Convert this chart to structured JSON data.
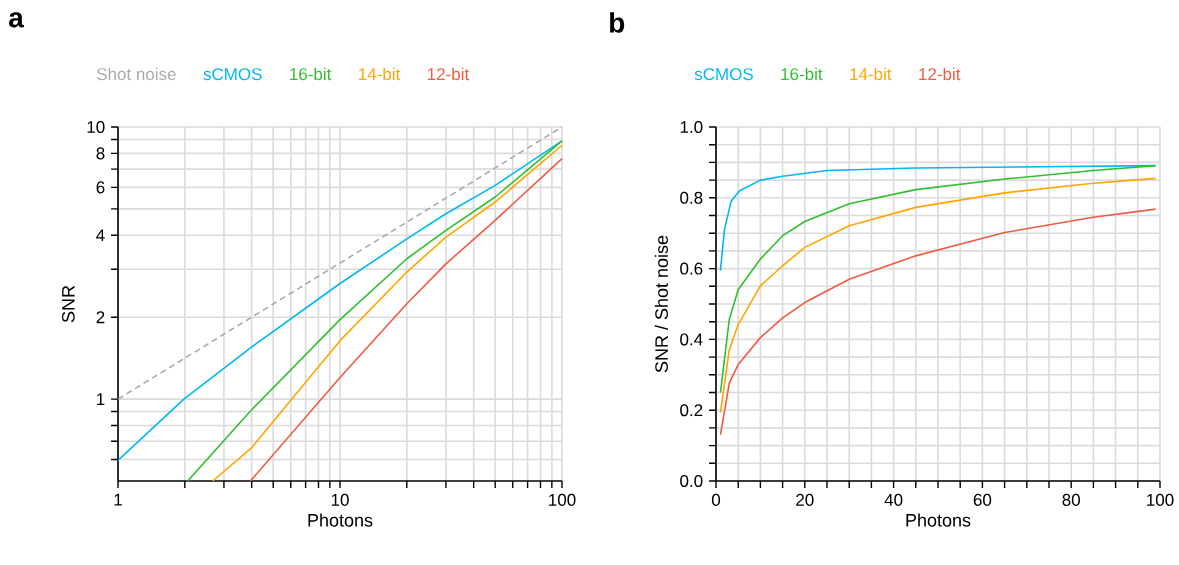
{
  "chart_data": [
    {
      "type": "line",
      "annotations": [
        "a"
      ],
      "xlabel": "Photons",
      "ylabel": "SNR",
      "log": "xy",
      "grid": true,
      "legend": "top",
      "marker": "none",
      "line_style": "solid",
      "xlim": [
        1,
        100
      ],
      "ylim": [
        0.5,
        10
      ],
      "xticks": [
        1,
        {
          "value": 2,
          "label": null
        },
        {
          "value": 3,
          "label": null
        },
        {
          "value": 4,
          "label": null
        },
        {
          "value": 5,
          "label": null
        },
        {
          "value": 6,
          "label": null
        },
        {
          "value": 7,
          "label": null
        },
        {
          "value": 8,
          "label": null
        },
        {
          "value": 9,
          "label": null
        },
        10,
        {
          "value": 20,
          "label": null
        },
        {
          "value": 30,
          "label": null
        },
        {
          "value": 40,
          "label": null
        },
        {
          "value": 50,
          "label": null
        },
        {
          "value": 60,
          "label": null
        },
        {
          "value": 70,
          "label": null
        },
        {
          "value": 80,
          "label": null
        },
        {
          "value": 90,
          "label": null
        },
        100
      ],
      "yticks": [
        {
          "value": 0.6,
          "label": null
        },
        {
          "value": 0.7,
          "label": null
        },
        {
          "value": 0.8,
          "label": null
        },
        {
          "value": 0.9,
          "label": null
        },
        1,
        2,
        {
          "value": 3,
          "label": null
        },
        4,
        {
          "value": 5,
          "label": null
        },
        6,
        {
          "value": 7,
          "label": null
        },
        8,
        {
          "value": 9,
          "label": null
        },
        10
      ],
      "series": [
        {
          "name": "Shot noise",
          "color": "#aaaaaa",
          "line_style": "dashed",
          "x": [
            1,
            100
          ],
          "values": [
            1,
            10
          ]
        },
        {
          "name": "sCMOS",
          "color": "#00b8f0",
          "x": [
            1,
            1.98,
            3.98,
            10,
            20,
            30,
            50,
            100
          ],
          "values": [
            0.595,
            1.0,
            1.55,
            2.66,
            3.88,
            4.8,
            6.1,
            8.89
          ]
        },
        {
          "name": "16-bit",
          "color": "#2fbf2f",
          "x": [
            2.06,
            3.98,
            10,
            20,
            30,
            50,
            100
          ],
          "values": [
            0.5,
            0.91,
            1.96,
            3.28,
            4.17,
            5.53,
            8.89
          ]
        },
        {
          "name": "14-bit",
          "color": "#ffa500",
          "x": [
            2.67,
            3.98,
            10,
            20,
            30,
            50,
            100
          ],
          "values": [
            0.5,
            0.66,
            1.64,
            2.93,
            3.94,
            5.3,
            8.57
          ]
        },
        {
          "name": "12-bit",
          "color": "#f05a40",
          "x": [
            3.95,
            10,
            20,
            30,
            50,
            100
          ],
          "values": [
            0.5,
            1.2,
            2.24,
            3.14,
            4.54,
            7.65
          ]
        }
      ]
    },
    {
      "type": "line",
      "annotations": [
        "b"
      ],
      "xlabel": "Photons",
      "ylabel": "SNR / Shot noise",
      "grid": true,
      "legend": "top",
      "marker": "none",
      "line_style": "solid",
      "xlim": [
        0,
        100
      ],
      "ylim": [
        0,
        1
      ],
      "xticks": [
        0,
        {
          "value": 5,
          "label": null
        },
        {
          "value": 10,
          "label": null
        },
        {
          "value": 15,
          "label": null
        },
        20,
        {
          "value": 25,
          "label": null
        },
        {
          "value": 30,
          "label": null
        },
        {
          "value": 35,
          "label": null
        },
        40,
        {
          "value": 45,
          "label": null
        },
        {
          "value": 50,
          "label": null
        },
        {
          "value": 55,
          "label": null
        },
        60,
        {
          "value": 65,
          "label": null
        },
        {
          "value": 70,
          "label": null
        },
        {
          "value": 75,
          "label": null
        },
        80,
        {
          "value": 85,
          "label": null
        },
        {
          "value": 90,
          "label": null
        },
        {
          "value": 95,
          "label": null
        },
        100
      ],
      "yticks": [
        {
          "value": 0,
          "label": "0.0"
        },
        {
          "value": 0.05,
          "label": null
        },
        {
          "value": 0.1,
          "label": null
        },
        {
          "value": 0.15,
          "label": null
        },
        0.2,
        {
          "value": 0.25,
          "label": null
        },
        {
          "value": 0.3,
          "label": null
        },
        {
          "value": 0.35,
          "label": null
        },
        0.4,
        {
          "value": 0.45,
          "label": null
        },
        {
          "value": 0.5,
          "label": null
        },
        {
          "value": 0.55,
          "label": null
        },
        0.6,
        {
          "value": 0.65,
          "label": null
        },
        {
          "value": 0.7,
          "label": null
        },
        {
          "value": 0.75,
          "label": null
        },
        0.8,
        {
          "value": 0.85,
          "label": null
        },
        {
          "value": 0.9,
          "label": null
        },
        {
          "value": 0.95,
          "label": null
        },
        {
          "value": 1,
          "label": "1.0"
        }
      ],
      "series": [
        {
          "name": "sCMOS",
          "color": "#00b8f0",
          "x": [
            1,
            1.9,
            3.4,
            5.3,
            10,
            15,
            25,
            45,
            99
          ],
          "values": [
            0.594,
            0.71,
            0.79,
            0.82,
            0.85,
            0.861,
            0.877,
            0.884,
            0.891
          ]
        },
        {
          "name": "16-bit",
          "color": "#2fbf2f",
          "x": [
            1,
            3,
            5,
            10,
            15,
            20,
            30,
            45,
            65,
            85,
            99
          ],
          "values": [
            0.25,
            0.457,
            0.54,
            0.627,
            0.693,
            0.733,
            0.783,
            0.823,
            0.853,
            0.877,
            0.891
          ]
        },
        {
          "name": "14-bit",
          "color": "#ffa500",
          "x": [
            1,
            3,
            5,
            10,
            15,
            20,
            30,
            45,
            65,
            85,
            99
          ],
          "values": [
            0.194,
            0.371,
            0.442,
            0.551,
            0.608,
            0.66,
            0.721,
            0.773,
            0.814,
            0.841,
            0.855
          ]
        },
        {
          "name": "12-bit",
          "color": "#f05a40",
          "x": [
            1,
            3,
            5,
            10,
            15,
            20,
            30,
            45,
            65,
            85,
            99
          ],
          "values": [
            0.13,
            0.277,
            0.329,
            0.405,
            0.461,
            0.504,
            0.57,
            0.636,
            0.702,
            0.745,
            0.768
          ]
        }
      ]
    }
  ]
}
